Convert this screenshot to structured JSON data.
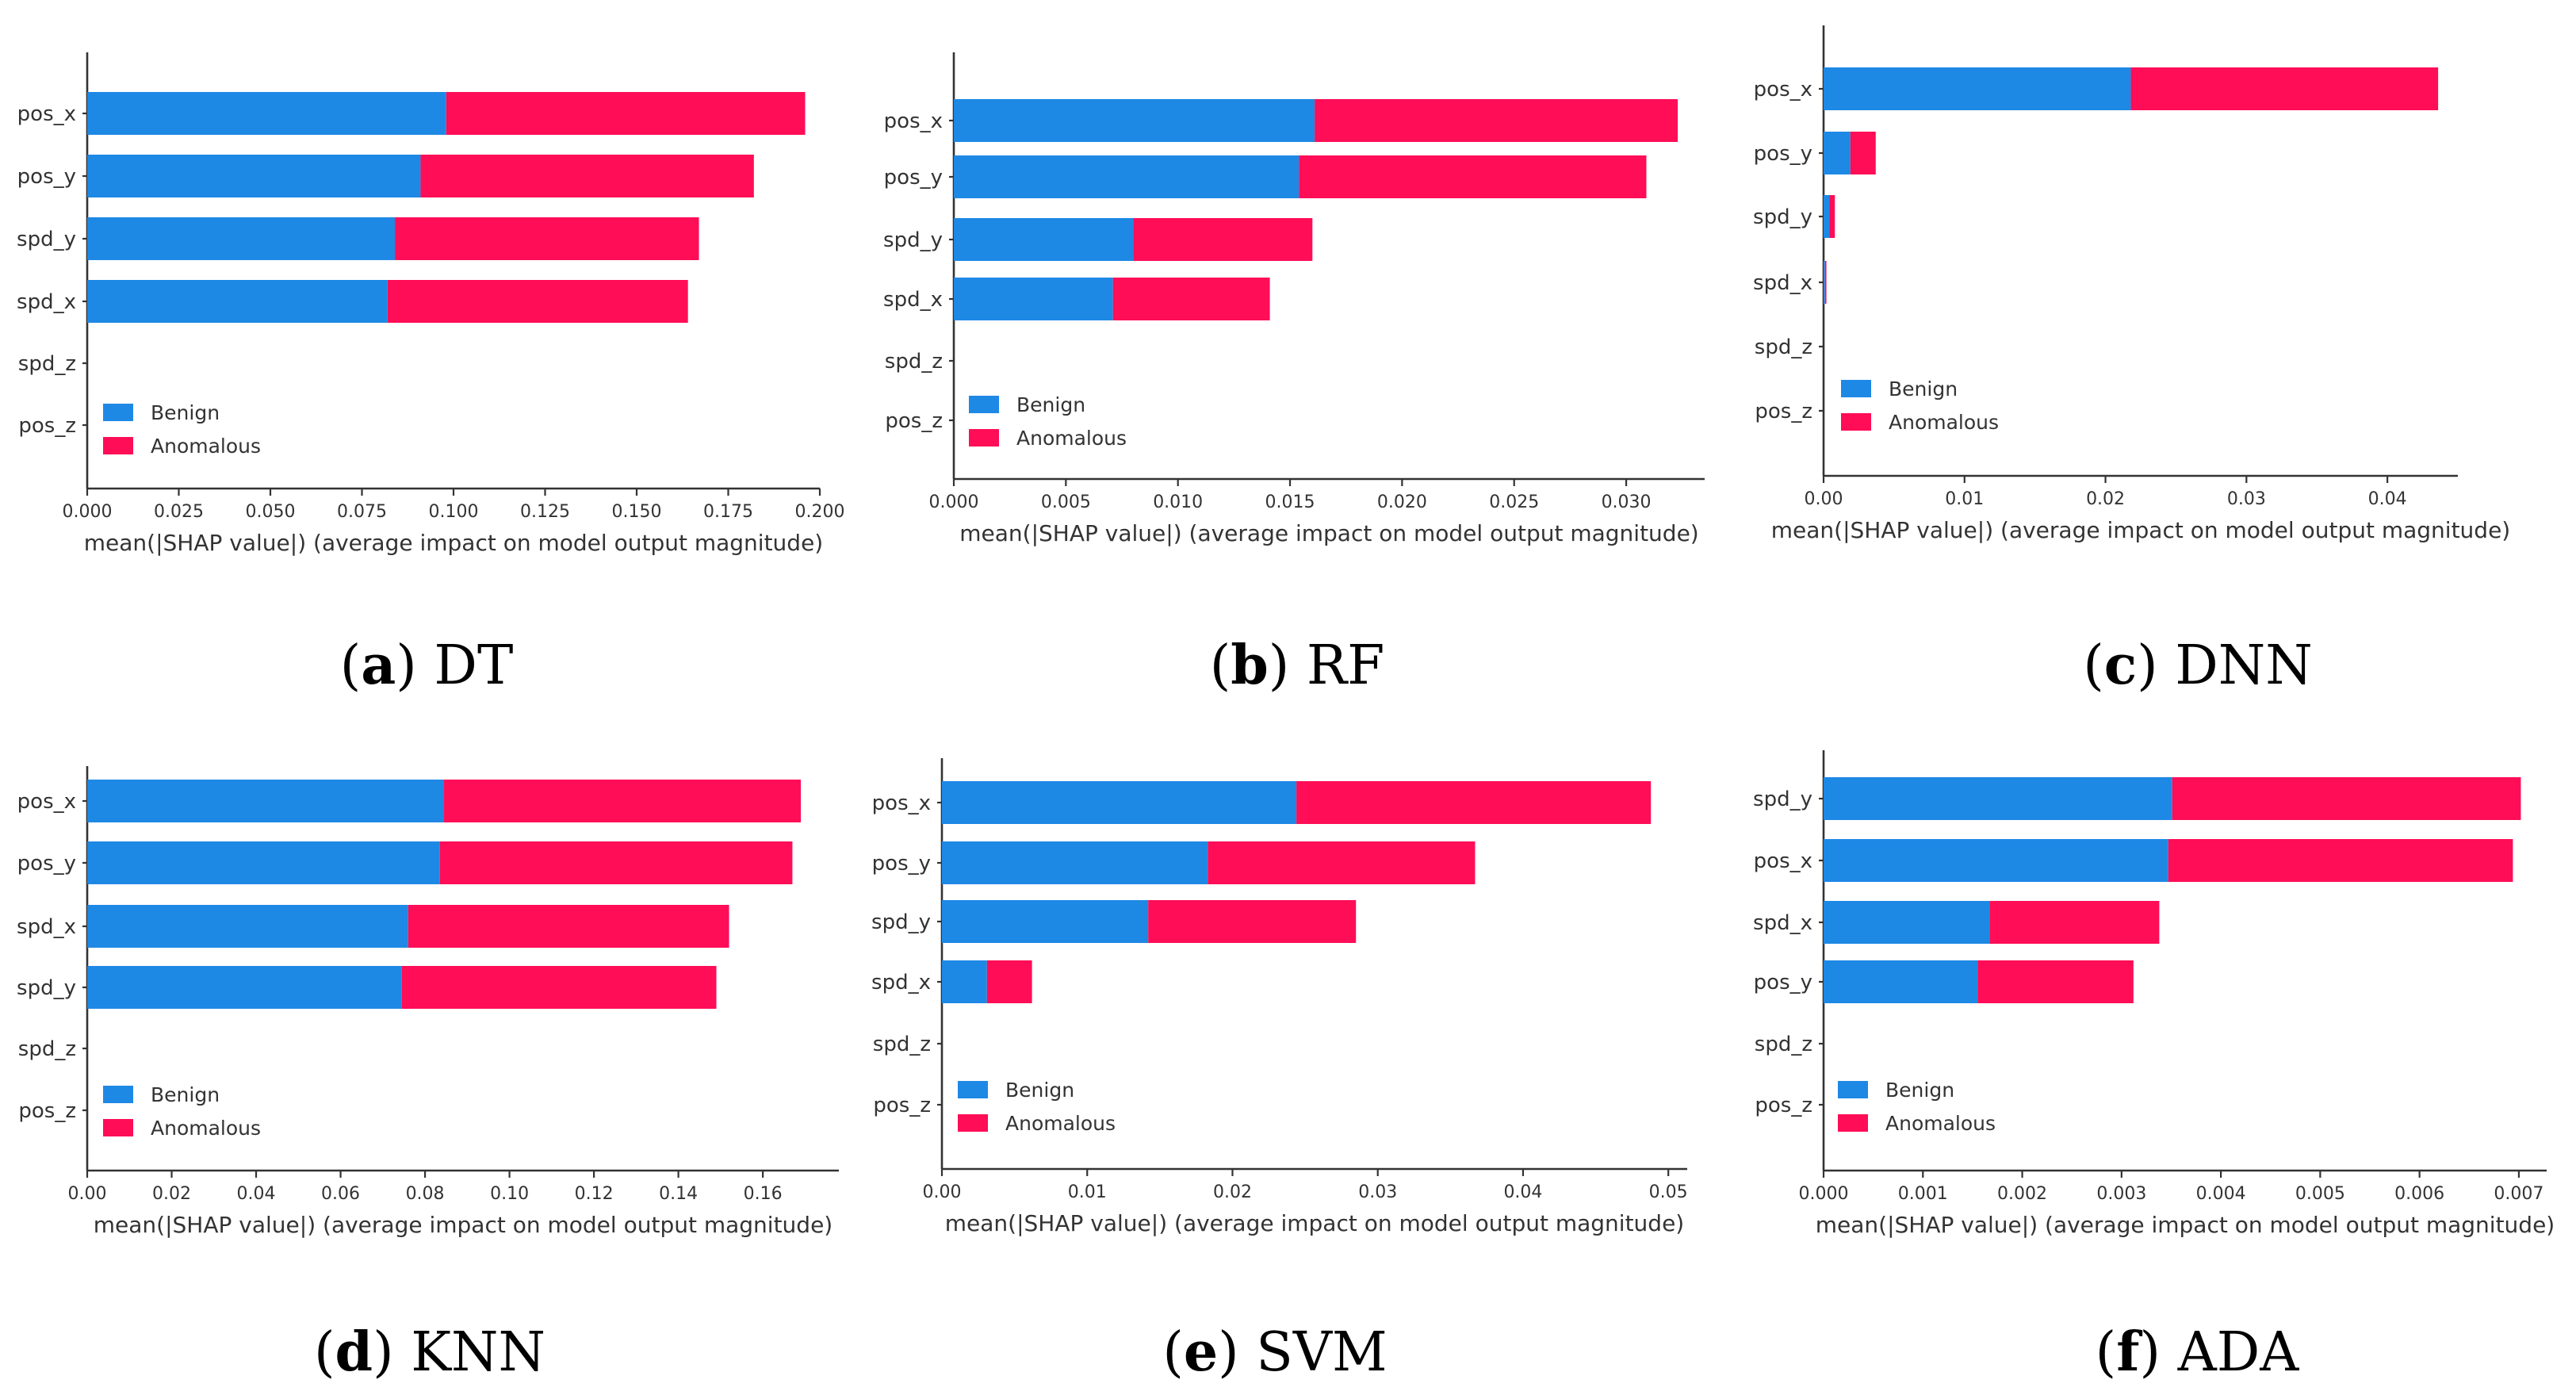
{
  "colors": {
    "benign": "#1e88e5",
    "anomalous": "#ff0d57"
  },
  "chart_data": [
    {
      "type": "bar",
      "orientation": "horizontal",
      "stacked": true,
      "caption_letter": "a",
      "caption_text": " DT",
      "categories": [
        "pos_x",
        "pos_y",
        "spd_y",
        "spd_x",
        "spd_z",
        "pos_z"
      ],
      "series": [
        {
          "name": "Benign",
          "values": [
            0.098,
            0.091,
            0.084,
            0.082,
            0,
            0
          ]
        },
        {
          "name": "Anomalous",
          "values": [
            0.098,
            0.091,
            0.083,
            0.082,
            0,
            0
          ]
        }
      ],
      "xlim": [
        0,
        0.2
      ],
      "xticks": [
        0.0,
        0.025,
        0.05,
        0.075,
        0.1,
        0.125,
        0.15,
        0.175,
        0.2
      ],
      "xtick_labels": [
        "0.000",
        "0.025",
        "0.050",
        "0.075",
        "0.100",
        "0.125",
        "0.150",
        "0.175",
        "0.200"
      ],
      "xlabel": "mean(|SHAP value|) (average impact on model output magnitude)",
      "legend": [
        "Benign",
        "Anomalous"
      ],
      "legend_position": "lower-left"
    },
    {
      "type": "bar",
      "orientation": "horizontal",
      "stacked": true,
      "caption_letter": "b",
      "caption_text": " RF",
      "categories": [
        "pos_x",
        "pos_y",
        "spd_y",
        "spd_x",
        "spd_z",
        "pos_z"
      ],
      "series": [
        {
          "name": "Benign",
          "values": [
            0.0161,
            0.0154,
            0.008,
            0.0071,
            0,
            0
          ]
        },
        {
          "name": "Anomalous",
          "values": [
            0.0162,
            0.0155,
            0.008,
            0.007,
            0,
            0
          ]
        }
      ],
      "xlim": [
        0,
        0.0335
      ],
      "xticks": [
        0.0,
        0.005,
        0.01,
        0.015,
        0.02,
        0.025,
        0.03
      ],
      "xtick_labels": [
        "0.000",
        "0.005",
        "0.010",
        "0.015",
        "0.020",
        "0.025",
        "0.030"
      ],
      "xlabel": "mean(|SHAP value|) (average impact on model output magnitude)",
      "legend": [
        "Benign",
        "Anomalous"
      ],
      "legend_position": "lower-left"
    },
    {
      "type": "bar",
      "orientation": "horizontal",
      "stacked": true,
      "caption_letter": "c",
      "caption_text": " DNN",
      "categories": [
        "pos_x",
        "pos_y",
        "spd_y",
        "spd_x",
        "spd_z",
        "pos_z"
      ],
      "series": [
        {
          "name": "Benign",
          "values": [
            0.0218,
            0.0019,
            0.0004,
            0.0001,
            0,
            0
          ]
        },
        {
          "name": "Anomalous",
          "values": [
            0.0218,
            0.0018,
            0.0004,
            0.0001,
            0,
            0
          ]
        }
      ],
      "xlim": [
        0,
        0.045
      ],
      "xticks": [
        0.0,
        0.01,
        0.02,
        0.03,
        0.04
      ],
      "xtick_labels": [
        "0.00",
        "0.01",
        "0.02",
        "0.03",
        "0.04"
      ],
      "xlabel": "mean(|SHAP value|) (average impact on model output magnitude)",
      "legend": [
        "Benign",
        "Anomalous"
      ],
      "legend_position": "lower-left"
    },
    {
      "type": "bar",
      "orientation": "horizontal",
      "stacked": true,
      "caption_letter": "d",
      "caption_text": " KNN",
      "categories": [
        "pos_x",
        "pos_y",
        "spd_x",
        "spd_y",
        "spd_z",
        "pos_z"
      ],
      "series": [
        {
          "name": "Benign",
          "values": [
            0.0845,
            0.0835,
            0.076,
            0.0745,
            0,
            0
          ]
        },
        {
          "name": "Anomalous",
          "values": [
            0.0845,
            0.0835,
            0.076,
            0.0745,
            0,
            0
          ]
        }
      ],
      "xlim": [
        0,
        0.178
      ],
      "xticks": [
        0.0,
        0.02,
        0.04,
        0.06,
        0.08,
        0.1,
        0.12,
        0.14,
        0.16
      ],
      "xtick_labels": [
        "0.00",
        "0.02",
        "0.04",
        "0.06",
        "0.08",
        "0.10",
        "0.12",
        "0.14",
        "0.16"
      ],
      "xlabel": "mean(|SHAP value|) (average impact on model output magnitude)",
      "legend": [
        "Benign",
        "Anomalous"
      ],
      "legend_position": "lower-left"
    },
    {
      "type": "bar",
      "orientation": "horizontal",
      "stacked": true,
      "caption_letter": "e",
      "caption_text": " SVM",
      "categories": [
        "pos_x",
        "pos_y",
        "spd_y",
        "spd_x",
        "spd_z",
        "pos_z"
      ],
      "series": [
        {
          "name": "Benign",
          "values": [
            0.0244,
            0.0183,
            0.0142,
            0.0031,
            0,
            0
          ]
        },
        {
          "name": "Anomalous",
          "values": [
            0.0244,
            0.0184,
            0.0143,
            0.0031,
            0,
            0
          ]
        }
      ],
      "xlim": [
        0,
        0.0513
      ],
      "xticks": [
        0.0,
        0.01,
        0.02,
        0.03,
        0.04,
        0.05
      ],
      "xtick_labels": [
        "0.00",
        "0.01",
        "0.02",
        "0.03",
        "0.04",
        "0.05"
      ],
      "xlabel": "mean(|SHAP value|) (average impact on model output magnitude)",
      "legend": [
        "Benign",
        "Anomalous"
      ],
      "legend_position": "lower-left"
    },
    {
      "type": "bar",
      "orientation": "horizontal",
      "stacked": true,
      "caption_letter": "f",
      "caption_text": " ADA",
      "categories": [
        "spd_y",
        "pos_x",
        "spd_x",
        "pos_y",
        "spd_z",
        "pos_z"
      ],
      "series": [
        {
          "name": "Benign",
          "values": [
            0.00351,
            0.00347,
            0.00167,
            0.00155,
            0,
            0
          ]
        },
        {
          "name": "Anomalous",
          "values": [
            0.00351,
            0.00347,
            0.00171,
            0.00157,
            0,
            0
          ]
        }
      ],
      "xlim": [
        0,
        0.00728
      ],
      "xticks": [
        0.0,
        0.001,
        0.002,
        0.003,
        0.004,
        0.005,
        0.006,
        0.007
      ],
      "xtick_labels": [
        "0.000",
        "0.001",
        "0.002",
        "0.003",
        "0.004",
        "0.005",
        "0.006",
        "0.007"
      ],
      "xlabel": "mean(|SHAP value|) (average impact on model output magnitude)",
      "legend": [
        "Benign",
        "Anomalous"
      ],
      "legend_position": "lower-left"
    }
  ]
}
